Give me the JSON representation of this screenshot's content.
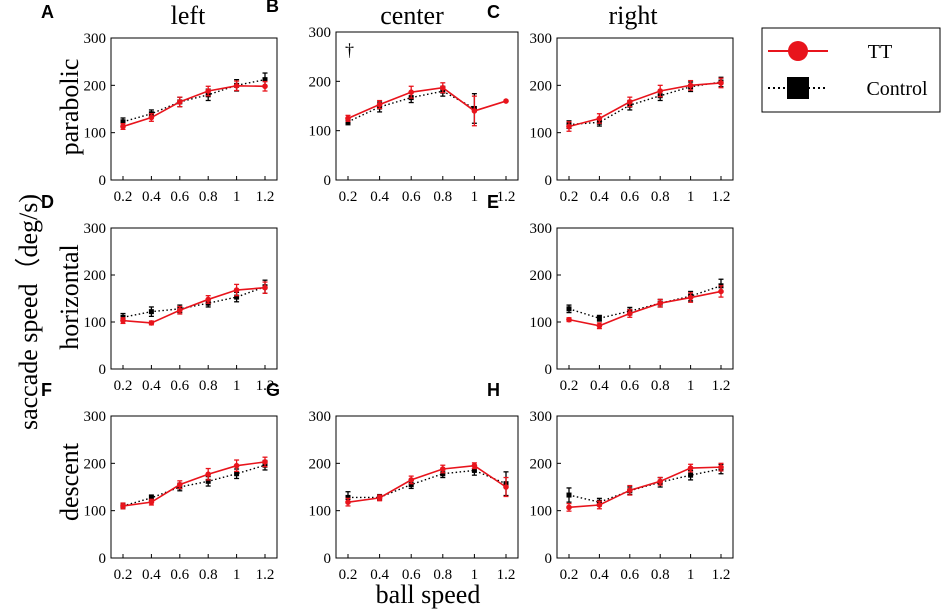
{
  "figure": {
    "column_titles": [
      "left",
      "center",
      "right"
    ],
    "row_titles": [
      "parabolic",
      "horizontal",
      "descent"
    ],
    "y_axis_label": "saccade speed（deg/s)",
    "x_axis_label": "ball speed",
    "legend": {
      "tt_label": "TT",
      "control_label": "Control"
    },
    "colors": {
      "tt": "#e8141c",
      "control": "#000000"
    }
  },
  "chart_data": [
    {
      "type": "line",
      "panel": "A",
      "title": "left",
      "row": "parabolic",
      "x": [
        0.2,
        0.4,
        0.6,
        0.8,
        1,
        1.2
      ],
      "ylim": [
        0,
        300
      ],
      "yticks": [
        0,
        100,
        200,
        300
      ],
      "series": [
        {
          "name": "TT",
          "values": [
            113,
            132,
            165,
            188,
            199,
            198
          ],
          "errors": [
            6,
            8,
            10,
            10,
            10,
            10
          ]
        },
        {
          "name": "Control",
          "values": [
            123,
            140,
            165,
            180,
            200,
            212
          ],
          "errors": [
            8,
            8,
            10,
            12,
            12,
            14
          ]
        }
      ]
    },
    {
      "type": "line",
      "panel": "B",
      "title": "center",
      "row": "parabolic",
      "annotation": "†",
      "x": [
        0.2,
        0.4,
        0.6,
        0.8,
        1,
        1.2
      ],
      "ylim": [
        0,
        300
      ],
      "yticks": [
        0,
        100,
        200,
        300
      ],
      "series": [
        {
          "name": "TT",
          "values": [
            125,
            153,
            178,
            187,
            140,
            160
          ],
          "errors": [
            6,
            8,
            12,
            10,
            30,
            0
          ]
        },
        {
          "name": "Control",
          "values": [
            118,
            148,
            167,
            180,
            145,
            null
          ],
          "errors": [
            6,
            10,
            10,
            10,
            30,
            0
          ]
        }
      ]
    },
    {
      "type": "line",
      "panel": "C",
      "title": "right",
      "row": "parabolic",
      "x": [
        0.2,
        0.4,
        0.6,
        0.8,
        1,
        1.2
      ],
      "ylim": [
        0,
        300
      ],
      "yticks": [
        0,
        100,
        200,
        300
      ],
      "series": [
        {
          "name": "TT",
          "values": [
            113,
            130,
            165,
            188,
            200,
            205
          ],
          "errors": [
            10,
            10,
            10,
            12,
            10,
            10
          ]
        },
        {
          "name": "Control",
          "values": [
            117,
            122,
            158,
            178,
            197,
            207
          ],
          "errors": [
            8,
            8,
            10,
            10,
            10,
            10
          ]
        }
      ]
    },
    {
      "type": "line",
      "panel": "D",
      "title": "left",
      "row": "horizontal",
      "x": [
        0.2,
        0.4,
        0.6,
        0.8,
        1,
        1.2
      ],
      "ylim": [
        0,
        300
      ],
      "yticks": [
        0,
        100,
        200,
        300
      ],
      "series": [
        {
          "name": "TT",
          "values": [
            103,
            98,
            125,
            148,
            168,
            173
          ],
          "errors": [
            6,
            4,
            8,
            8,
            12,
            12
          ]
        },
        {
          "name": "Control",
          "values": [
            110,
            122,
            128,
            140,
            153,
            175
          ],
          "errors": [
            8,
            10,
            8,
            8,
            10,
            14
          ]
        }
      ]
    },
    {
      "type": "line",
      "panel": "E",
      "title": "right",
      "row": "horizontal",
      "x": [
        0.2,
        0.4,
        0.6,
        0.8,
        1,
        1.2
      ],
      "ylim": [
        0,
        300
      ],
      "yticks": [
        0,
        100,
        200,
        300
      ],
      "series": [
        {
          "name": "TT",
          "values": [
            105,
            92,
            118,
            140,
            152,
            165
          ],
          "errors": [
            4,
            6,
            8,
            8,
            10,
            12
          ]
        },
        {
          "name": "Control",
          "values": [
            128,
            108,
            123,
            140,
            155,
            177
          ],
          "errors": [
            8,
            6,
            8,
            8,
            10,
            14
          ]
        }
      ]
    },
    {
      "type": "line",
      "panel": "F",
      "title": "left",
      "row": "descent",
      "x": [
        0.2,
        0.4,
        0.6,
        0.8,
        1,
        1.2
      ],
      "ylim": [
        0,
        300
      ],
      "yticks": [
        0,
        100,
        200,
        300
      ],
      "series": [
        {
          "name": "TT",
          "values": [
            110,
            118,
            155,
            177,
            195,
            203
          ],
          "errors": [
            6,
            6,
            8,
            12,
            12,
            10
          ]
        },
        {
          "name": "Control",
          "values": [
            110,
            127,
            150,
            162,
            178,
            196
          ],
          "errors": [
            6,
            6,
            8,
            10,
            10,
            10
          ]
        }
      ]
    },
    {
      "type": "line",
      "panel": "G",
      "title": "center",
      "row": "descent",
      "x": [
        0.2,
        0.4,
        0.6,
        0.8,
        1,
        1.2
      ],
      "ylim": [
        0,
        300
      ],
      "yticks": [
        0,
        100,
        200,
        300
      ],
      "series": [
        {
          "name": "TT",
          "values": [
            118,
            127,
            165,
            188,
            195,
            150
          ],
          "errors": [
            8,
            6,
            8,
            8,
            6,
            20
          ]
        },
        {
          "name": "Control",
          "values": [
            128,
            128,
            155,
            178,
            185,
            157
          ],
          "errors": [
            12,
            6,
            8,
            8,
            10,
            25
          ]
        }
      ]
    },
    {
      "type": "line",
      "panel": "H",
      "title": "right",
      "row": "descent",
      "x": [
        0.2,
        0.4,
        0.6,
        0.8,
        1,
        1.2
      ],
      "ylim": [
        0,
        300
      ],
      "yticks": [
        0,
        100,
        200,
        300
      ],
      "series": [
        {
          "name": "TT",
          "values": [
            107,
            112,
            143,
            162,
            190,
            192
          ],
          "errors": [
            8,
            8,
            10,
            8,
            8,
            8
          ]
        },
        {
          "name": "Control",
          "values": [
            133,
            118,
            142,
            160,
            175,
            188
          ],
          "errors": [
            15,
            8,
            8,
            10,
            10,
            10
          ]
        }
      ]
    }
  ]
}
